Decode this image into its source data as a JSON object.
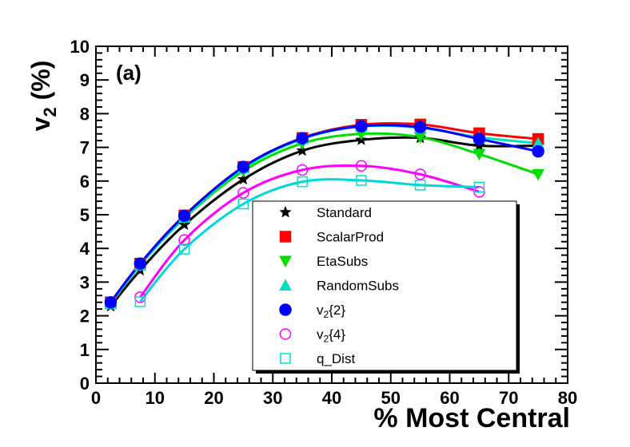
{
  "chart_data": {
    "type": "line",
    "panel_label": "(a)",
    "xlabel": "% Most Central",
    "ylabel_main": "v",
    "ylabel_sub": "2",
    "ylabel_tail": " (%)",
    "xlim": [
      0,
      80
    ],
    "ylim": [
      0,
      10
    ],
    "x_ticks": [
      "0",
      "10",
      "20",
      "30",
      "40",
      "50",
      "60",
      "70",
      "80"
    ],
    "y_ticks": [
      "0",
      "1",
      "2",
      "3",
      "4",
      "5",
      "6",
      "7",
      "8",
      "9",
      "10"
    ],
    "grid": false,
    "legend_position": "bottom-right",
    "series": [
      {
        "name": "Standard",
        "marker": "star",
        "filled": true,
        "color": "#000000",
        "curve_color": "#000000",
        "x": [
          2.5,
          7.5,
          15,
          25,
          35,
          45,
          55,
          65,
          75
        ],
        "y": [
          2.28,
          3.35,
          4.7,
          6.05,
          6.9,
          7.22,
          7.28,
          7.05,
          7.05
        ]
      },
      {
        "name": "ScalarProd",
        "marker": "square",
        "filled": true,
        "color": "#ff0000",
        "curve_color": "#ff0000",
        "x": [
          2.5,
          7.5,
          15,
          25,
          35,
          45,
          55,
          65,
          75
        ],
        "y": [
          2.4,
          3.55,
          4.98,
          6.42,
          7.28,
          7.67,
          7.68,
          7.42,
          7.25
        ]
      },
      {
        "name": "EtaSubs",
        "marker": "triangle-down",
        "filled": true,
        "color": "#00dd00",
        "curve_color": "#00dd00",
        "x": [
          2.5,
          7.5,
          15,
          25,
          35,
          45,
          55,
          65,
          75
        ],
        "y": [
          2.38,
          3.5,
          4.9,
          6.3,
          7.12,
          7.4,
          7.3,
          6.8,
          6.2
        ]
      },
      {
        "name": "RandomSubs",
        "marker": "triangle-up",
        "filled": true,
        "color": "#00e0c0",
        "curve_color": "#00e0c0",
        "x": [
          2.5,
          7.5,
          15,
          25,
          35,
          45,
          55,
          65,
          75
        ],
        "y": [
          2.35,
          3.5,
          4.92,
          6.38,
          7.25,
          7.62,
          7.58,
          7.3,
          7.12
        ]
      },
      {
        "name": "v_2{2}",
        "label_main": "v",
        "label_sub": "2",
        "label_tail": "{2}",
        "marker": "circle",
        "filled": true,
        "color": "#0000ff",
        "curve_color": "#0000ff",
        "x": [
          2.5,
          7.5,
          15,
          25,
          35,
          45,
          55,
          65,
          75
        ],
        "y": [
          2.4,
          3.55,
          4.97,
          6.42,
          7.27,
          7.63,
          7.6,
          7.25,
          6.88
        ]
      },
      {
        "name": "v_2{4}",
        "label_main": "v",
        "label_sub": "2",
        "label_tail": "{4}",
        "marker": "circle",
        "filled": false,
        "color": "#ff00ff",
        "curve_color": "#ff00ff",
        "x": [
          7.5,
          15,
          25,
          35,
          45,
          55,
          65
        ],
        "y": [
          2.55,
          4.25,
          5.65,
          6.33,
          6.45,
          6.2,
          5.68
        ]
      },
      {
        "name": "q_Dist",
        "marker": "square",
        "filled": false,
        "color": "#00e0d0",
        "curve_color": "#00d8d8",
        "x": [
          7.5,
          15,
          25,
          35,
          45,
          55,
          65
        ],
        "y": [
          2.42,
          3.98,
          5.32,
          5.98,
          6.02,
          5.88,
          5.82
        ]
      }
    ]
  }
}
